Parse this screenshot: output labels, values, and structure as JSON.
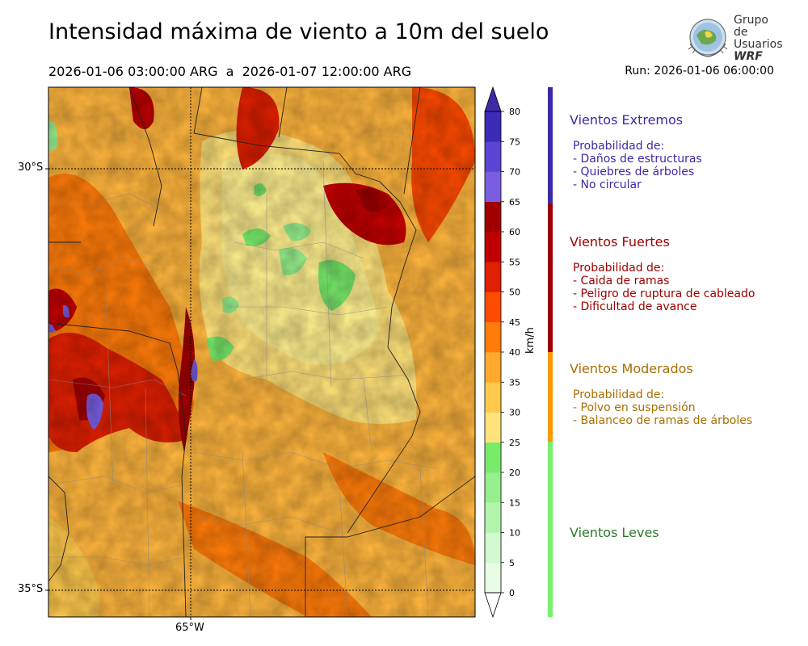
{
  "title": "Intensidad máxima de viento a 10m del suelo",
  "period": "2026-01-06 03:00:00 ARG  a  2026-01-07 12:00:00 ARG",
  "run": "Run: 2026-01-06 06:00:00",
  "logo": {
    "line1": "Grupo de",
    "line2": "Usuarios",
    "line3": "WRF"
  },
  "map": {
    "lat_labels": [
      "30°S",
      "35°S"
    ],
    "lon_labels": [
      "65°W"
    ],
    "lat_range": [
      -35.3,
      -29.3
    ],
    "lon_range": [
      -66.0,
      -61.5
    ]
  },
  "colorbar": {
    "unit": "km/h",
    "ticks": [
      "0",
      "5",
      "10",
      "15",
      "20",
      "25",
      "30",
      "35",
      "40",
      "45",
      "50",
      "55",
      "60",
      "65",
      "70",
      "75",
      "80"
    ],
    "colors": [
      "#e8fde6",
      "#d2f9cf",
      "#b4f5ae",
      "#97ef8d",
      "#79eb6b",
      "#ffe37a",
      "#ffc94d",
      "#ffa82c",
      "#ff7c0a",
      "#ff4b00",
      "#e02000",
      "#c00000",
      "#a00000",
      "#7a5de0",
      "#5a44d4",
      "#3d2bb8"
    ],
    "under_color": "#ffffff",
    "over_color": "#3d2ba8"
  },
  "categories": [
    {
      "title": "Vientos Extremos",
      "color": "#3a2aaa",
      "text_color": "#3b2aaa",
      "lines": [
        "Probabilidad de:",
        "- Daños de estructuras",
        "- Quiebres de árboles",
        "- No circular"
      ]
    },
    {
      "title": "Vientos Fuertes",
      "color": "#a00000",
      "text_color": "#a00000",
      "lines": [
        "Probabilidad de:",
        "- Caida de ramas",
        "- Peligro de ruptura de cableado",
        "- Dificultad de avance"
      ]
    },
    {
      "title": "Vientos Moderados",
      "color": "#ff9900",
      "text_color": "#a86f00",
      "lines": [
        "Probabilidad de:",
        "- Polvo en suspensión",
        "- Balanceo de ramas de árboles"
      ]
    },
    {
      "title": "Vientos Leves",
      "color": "#79f06c",
      "text_color": "#2a7a2a",
      "lines": []
    }
  ]
}
